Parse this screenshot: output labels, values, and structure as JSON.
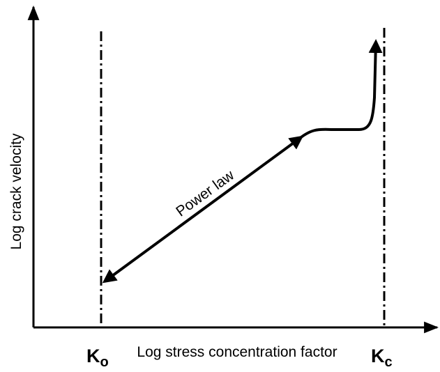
{
  "axes": {
    "x_label": "Log stress concentration factor",
    "y_label": "Log crack velocity"
  },
  "curve_label": "Power law",
  "markers": [
    {
      "symbol": "K",
      "subscript": "o"
    },
    {
      "symbol": "K",
      "subscript": "c"
    }
  ]
}
